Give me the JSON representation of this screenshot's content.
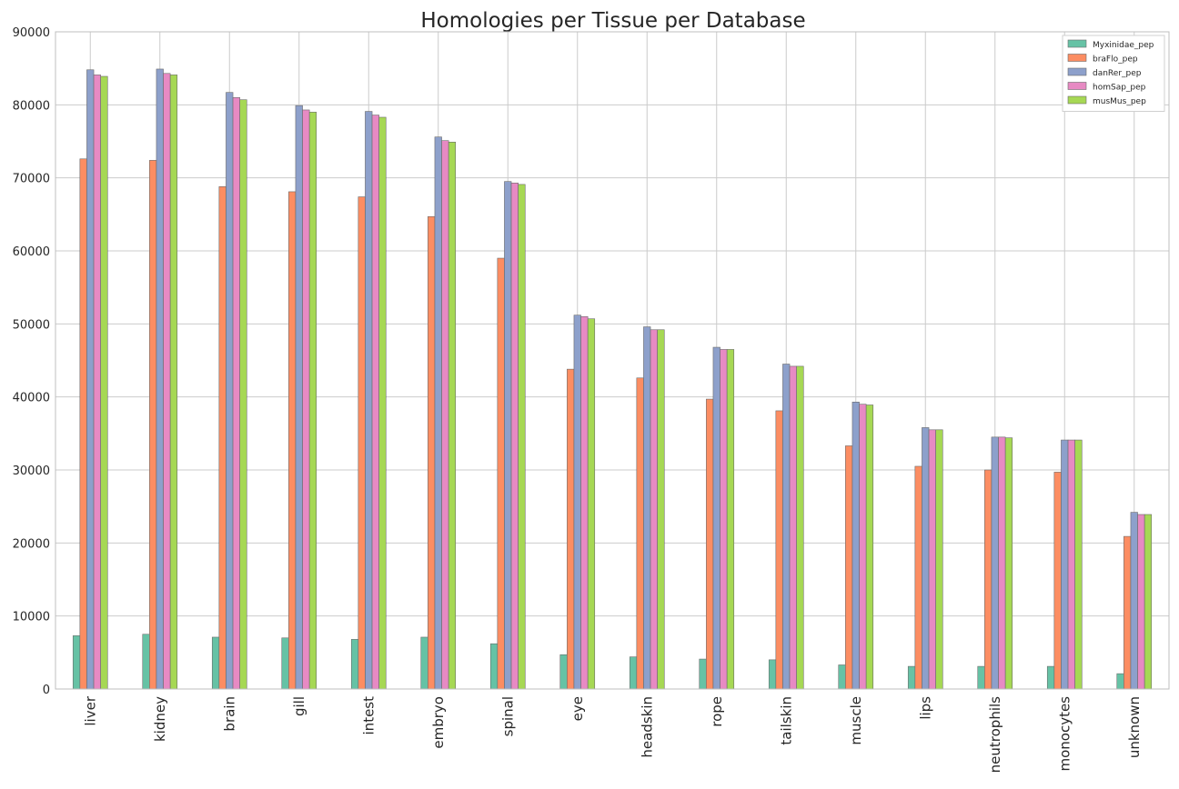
{
  "chart_data": {
    "type": "bar",
    "title": "Homologies per Tissue per Database",
    "xlabel": "",
    "ylabel": "",
    "ylim": [
      0,
      90000
    ],
    "yticks": [
      0,
      10000,
      20000,
      30000,
      40000,
      50000,
      60000,
      70000,
      80000,
      90000
    ],
    "grid": true,
    "legend_position": "top-right",
    "categories": [
      "liver",
      "kidney",
      "brain",
      "gill",
      "intest",
      "embryo",
      "spinal",
      "eye",
      "headskin",
      "rope",
      "tailskin",
      "muscle",
      "lips",
      "neutrophils",
      "monocytes",
      "unknown"
    ],
    "series": [
      {
        "name": "Myxinidae_pep",
        "color": "#66c2a5",
        "values": [
          7300,
          7500,
          7100,
          7000,
          6800,
          7100,
          6200,
          4700,
          4400,
          4100,
          4000,
          3300,
          3100,
          3100,
          3100,
          2100
        ]
      },
      {
        "name": "braFlo_pep",
        "color": "#fc8d62",
        "values": [
          72600,
          72400,
          68800,
          68100,
          67400,
          64700,
          59000,
          43800,
          42600,
          39700,
          38100,
          33300,
          30500,
          30000,
          29700,
          20900
        ]
      },
      {
        "name": "danRer_pep",
        "color": "#8da0cb",
        "values": [
          84800,
          84900,
          81700,
          79900,
          79100,
          75600,
          69500,
          51200,
          49600,
          46800,
          44500,
          39300,
          35800,
          34500,
          34100,
          24200
        ]
      },
      {
        "name": "homSap_pep",
        "color": "#e78ac3",
        "values": [
          84100,
          84300,
          81000,
          79300,
          78600,
          75100,
          69300,
          51000,
          49200,
          46500,
          44200,
          39000,
          35500,
          34500,
          34100,
          23900
        ]
      },
      {
        "name": "musMus_pep",
        "color": "#a6d854",
        "values": [
          83900,
          84100,
          80700,
          79000,
          78300,
          74900,
          69100,
          50700,
          49200,
          46500,
          44200,
          38900,
          35500,
          34400,
          34100,
          23900
        ]
      }
    ]
  }
}
